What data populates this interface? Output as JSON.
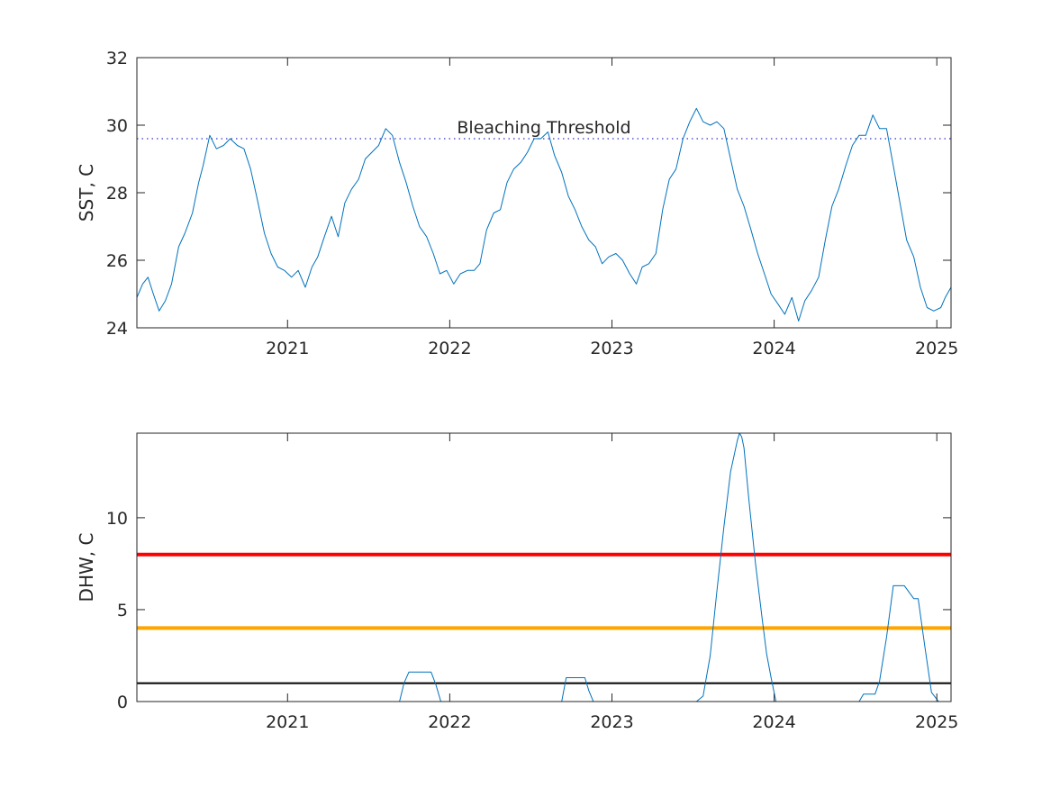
{
  "colors": {
    "series": "#0072BD",
    "threshold_dotted": "#3333CC",
    "alert_red": "#FF0000",
    "alert_orange": "#FFA500",
    "alert_black": "#000000",
    "axis": "#262626"
  },
  "chart_data": [
    {
      "type": "line",
      "title": "",
      "xlabel": "",
      "ylabel": "SST, C",
      "xlim": [
        "2020-01-28",
        "2025-02-02"
      ],
      "ylim": [
        24,
        32
      ],
      "xticks": [
        "2021-01-01",
        "2022-01-01",
        "2023-01-01",
        "2024-01-01",
        "2025-01-01"
      ],
      "xticklabels": [
        "2021",
        "2022",
        "2023",
        "2024",
        "2025"
      ],
      "yticks": [
        24,
        26,
        28,
        30,
        32
      ],
      "yticklabels": [
        "24",
        "26",
        "28",
        "30",
        "32"
      ],
      "grid": false,
      "annotation": "Bleaching Threshold",
      "threshold": {
        "y": 29.6,
        "style": "dotted"
      },
      "series": [
        {
          "x": [
            "2020-01-28",
            "2020-02-10",
            "2020-02-22",
            "2020-03-05",
            "2020-03-18",
            "2020-04-01",
            "2020-04-15",
            "2020-05-01",
            "2020-05-15",
            "2020-06-01",
            "2020-06-15",
            "2020-06-25",
            "2020-07-10",
            "2020-07-25",
            "2020-08-10",
            "2020-08-25",
            "2020-09-10",
            "2020-09-25",
            "2020-10-10",
            "2020-10-25",
            "2020-11-10",
            "2020-11-25",
            "2020-12-10",
            "2020-12-25",
            "2021-01-10",
            "2021-01-25",
            "2021-02-10",
            "2021-02-25",
            "2021-03-10",
            "2021-03-25",
            "2021-04-10",
            "2021-04-25",
            "2021-05-10",
            "2021-05-25",
            "2021-06-10",
            "2021-06-25",
            "2021-07-10",
            "2021-07-25",
            "2021-08-10",
            "2021-08-25",
            "2021-09-10",
            "2021-09-25",
            "2021-10-10",
            "2021-10-25",
            "2021-11-10",
            "2021-11-25",
            "2021-12-10",
            "2021-12-25",
            "2022-01-10",
            "2022-01-25",
            "2022-02-10",
            "2022-02-25",
            "2022-03-10",
            "2022-03-25",
            "2022-04-10",
            "2022-04-25",
            "2022-05-10",
            "2022-05-25",
            "2022-06-10",
            "2022-06-25",
            "2022-07-10",
            "2022-07-25",
            "2022-08-10",
            "2022-08-25",
            "2022-09-10",
            "2022-09-25",
            "2022-10-10",
            "2022-10-25",
            "2022-11-10",
            "2022-11-25",
            "2022-12-10",
            "2022-12-25",
            "2023-01-10",
            "2023-01-25",
            "2023-02-10",
            "2023-02-25",
            "2023-03-10",
            "2023-03-25",
            "2023-04-10",
            "2023-04-25",
            "2023-05-10",
            "2023-05-25",
            "2023-06-10",
            "2023-06-25",
            "2023-07-10",
            "2023-07-25",
            "2023-08-10",
            "2023-08-25",
            "2023-09-10",
            "2023-09-25",
            "2023-10-10",
            "2023-10-25",
            "2023-11-10",
            "2023-11-25",
            "2023-12-10",
            "2023-12-25",
            "2024-01-10",
            "2024-01-25",
            "2024-02-10",
            "2024-02-25",
            "2024-03-10",
            "2024-03-25",
            "2024-04-10",
            "2024-04-25",
            "2024-05-10",
            "2024-05-25",
            "2024-06-10",
            "2024-06-25",
            "2024-07-10",
            "2024-07-25",
            "2024-08-10",
            "2024-08-25",
            "2024-09-10",
            "2024-09-25",
            "2024-10-10",
            "2024-10-25",
            "2024-11-10",
            "2024-11-25",
            "2024-12-10",
            "2024-12-25",
            "2025-01-10",
            "2025-01-20",
            "2025-02-02"
          ],
          "y": [
            24.9,
            25.3,
            25.5,
            25.0,
            24.5,
            24.8,
            25.3,
            26.4,
            26.8,
            27.4,
            28.3,
            28.8,
            29.7,
            29.3,
            29.4,
            29.6,
            29.4,
            29.3,
            28.7,
            27.8,
            26.8,
            26.2,
            25.8,
            25.7,
            25.5,
            25.7,
            25.2,
            25.8,
            26.1,
            26.7,
            27.3,
            26.7,
            27.7,
            28.1,
            28.4,
            29.0,
            29.2,
            29.4,
            29.9,
            29.7,
            28.9,
            28.3,
            27.6,
            27.0,
            26.7,
            26.2,
            25.6,
            25.7,
            25.3,
            25.6,
            25.7,
            25.7,
            25.9,
            26.9,
            27.4,
            27.5,
            28.3,
            28.7,
            28.9,
            29.2,
            29.6,
            29.6,
            29.8,
            29.1,
            28.6,
            27.9,
            27.5,
            27.0,
            26.6,
            26.4,
            25.9,
            26.1,
            26.2,
            26.0,
            25.6,
            25.3,
            25.8,
            25.9,
            26.2,
            27.5,
            28.4,
            28.7,
            29.6,
            30.1,
            30.5,
            30.1,
            30.0,
            30.1,
            29.9,
            29.0,
            28.1,
            27.6,
            26.9,
            26.2,
            25.6,
            25.0,
            24.7,
            24.4,
            24.9,
            24.2,
            24.8,
            25.1,
            25.5,
            26.6,
            27.6,
            28.1,
            28.8,
            29.4,
            29.7,
            29.7,
            30.3,
            29.9,
            29.9,
            28.8,
            27.7,
            26.6,
            26.1,
            25.2,
            24.6,
            24.5,
            24.6,
            24.9,
            25.2
          ]
        }
      ]
    },
    {
      "type": "line",
      "title": "",
      "xlabel": "",
      "ylabel": "DHW, C",
      "xlim": [
        "2020-01-28",
        "2025-02-02"
      ],
      "ylim": [
        0,
        14.6
      ],
      "xticks": [
        "2021-01-01",
        "2022-01-01",
        "2023-01-01",
        "2024-01-01",
        "2025-01-01"
      ],
      "xticklabels": [
        "2021",
        "2022",
        "2023",
        "2024",
        "2025"
      ],
      "yticks": [
        0,
        5,
        10
      ],
      "yticklabels": [
        "0",
        "5",
        "10"
      ],
      "grid": false,
      "thresholds": [
        {
          "y": 8,
          "color": "red"
        },
        {
          "y": 4,
          "color": "orange"
        },
        {
          "y": 1,
          "color": "black"
        }
      ],
      "series": [
        {
          "x": [
            "2020-01-28",
            "2021-09-10",
            "2021-09-20",
            "2021-10-01",
            "2021-11-20",
            "2021-12-01",
            "2021-12-12",
            "2022-01-01",
            "2022-09-10",
            "2022-09-20",
            "2022-11-01",
            "2022-11-10",
            "2022-11-20",
            "2023-07-10",
            "2023-07-25",
            "2023-08-10",
            "2023-08-25",
            "2023-09-10",
            "2023-09-25",
            "2023-10-10",
            "2023-10-15",
            "2023-10-20",
            "2023-10-25",
            "2023-11-05",
            "2023-11-20",
            "2023-12-05",
            "2023-12-15",
            "2023-12-25",
            "2024-01-05",
            "2024-07-10",
            "2024-07-20",
            "2024-08-15",
            "2024-08-25",
            "2024-09-10",
            "2024-09-25",
            "2024-10-10",
            "2024-10-20",
            "2024-11-10",
            "2024-11-20",
            "2024-12-05",
            "2024-12-20",
            "2025-01-05",
            "2025-02-02"
          ],
          "y": [
            0,
            0,
            1.0,
            1.6,
            1.6,
            0.9,
            0,
            0,
            0,
            1.3,
            1.3,
            0.6,
            0,
            0,
            0.3,
            2.5,
            6.0,
            9.5,
            12.5,
            14.2,
            14.6,
            14.4,
            13.8,
            11.0,
            7.5,
            4.5,
            2.6,
            1.3,
            0,
            0,
            0.4,
            0.4,
            1.1,
            3.5,
            6.3,
            6.3,
            6.3,
            5.6,
            5.6,
            3.0,
            0.5,
            0,
            0
          ]
        }
      ]
    }
  ]
}
